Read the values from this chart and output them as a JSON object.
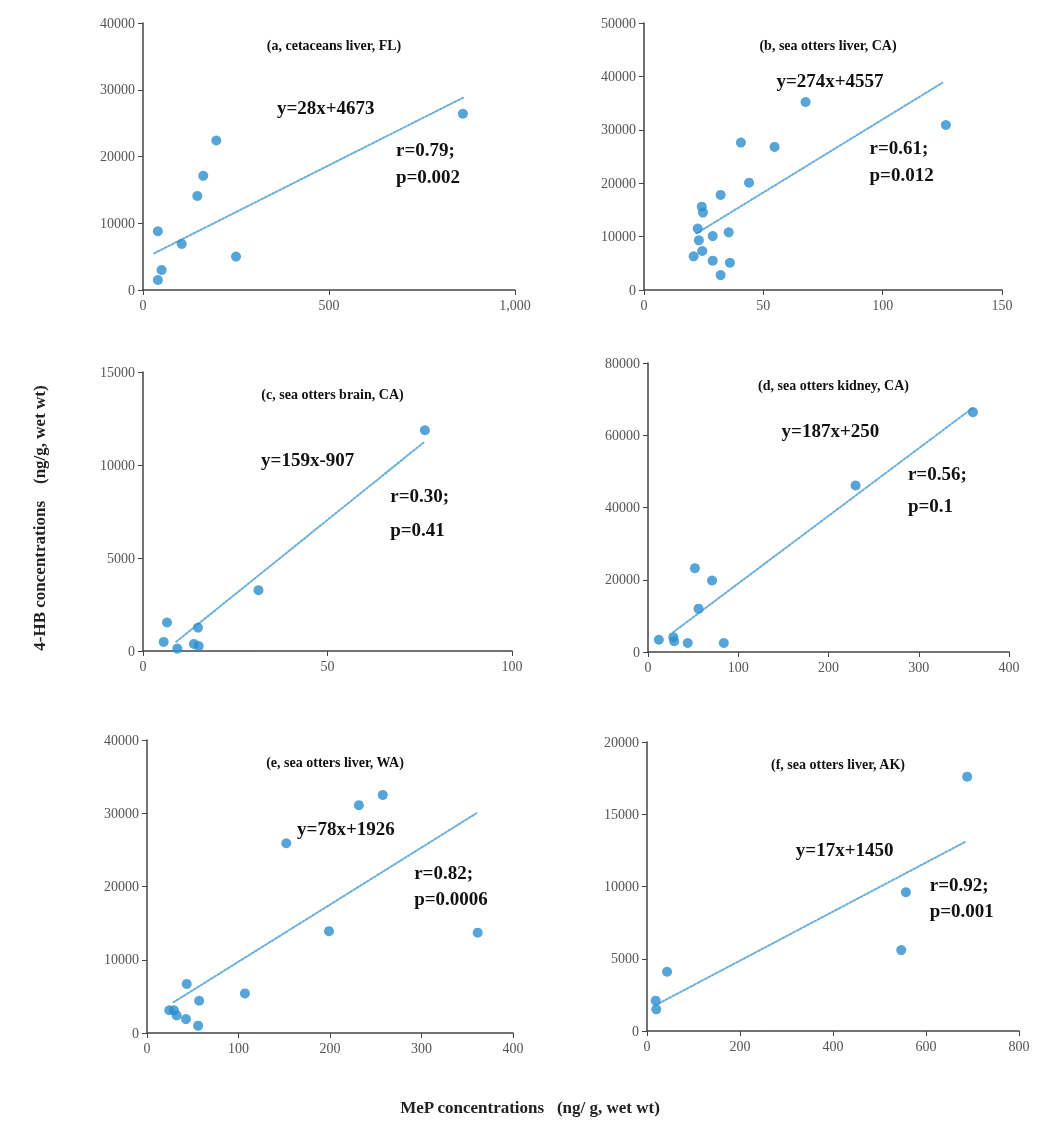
{
  "chart_data": [
    {
      "type": "scatter",
      "title": "(a, cetaceans liver, FL)",
      "annotations": [
        "y=28x+4673",
        "r=0.79;",
        "p=0.002"
      ],
      "xlim": [
        0,
        1000
      ],
      "xticks": [
        0,
        500,
        {
          "value": 1000,
          "label": "1,000"
        }
      ],
      "ylim": [
        0,
        40000
      ],
      "yticks": [
        0,
        10000,
        20000,
        30000,
        40000
      ],
      "marker": "circle",
      "series": [
        {
          "color": "#2a8fcf",
          "x": [
            40,
            104,
            146,
            162,
            197,
            250,
            860,
            40,
            50
          ],
          "values": [
            8800,
            6900,
            14100,
            17100,
            22400,
            5000,
            26400,
            1500,
            3000
          ]
        },
        {
          "type": "line",
          "color": "#6aaedc",
          "line_style": "dotted",
          "marker": "none",
          "x": [
            30,
            860
          ],
          "values": [
            5500,
            28800
          ]
        }
      ]
    },
    {
      "type": "scatter",
      "title": "(b, sea otters liver, CA)",
      "annotations": [
        "y=274x+4557",
        "r=0.61;",
        "p=0.012"
      ],
      "xlim": [
        0,
        150
      ],
      "xticks": [
        0,
        50,
        100,
        150
      ],
      "ylim": [
        0,
        50000
      ],
      "yticks": [
        0,
        10000,
        20000,
        30000,
        40000,
        50000
      ],
      "marker": "circle",
      "series": [
        {
          "color": "#2a8fcf",
          "x": [
            67.7,
            126.5,
            40.6,
            54.7,
            44,
            32.1,
            24.2,
            24.7,
            22.5,
            23,
            28.8,
            35.5,
            24.4,
            20.8,
            28.8,
            36,
            32.1
          ],
          "values": [
            35200,
            30900,
            27600,
            26800,
            20100,
            17800,
            15600,
            14500,
            11500,
            9300,
            10100,
            10800,
            7300,
            6300,
            5500,
            5100,
            2800
          ]
        },
        {
          "type": "line",
          "color": "#6aaedc",
          "line_style": "dotted",
          "marker": "none",
          "x": [
            22,
            125
          ],
          "values": [
            10600,
            38800
          ]
        }
      ]
    },
    {
      "type": "scatter",
      "title": "(c, sea otters brain, CA)",
      "ylabel": "4-HB concentrations    (ng/g, wet wt)",
      "annotations": [
        "y=159x-907",
        "r=0.30;",
        "p=0.41"
      ],
      "xlim": [
        0,
        100
      ],
      "xticks": [
        0,
        50,
        100
      ],
      "ylim": [
        0,
        15000
      ],
      "yticks": [
        0,
        5000,
        10000,
        15000
      ],
      "marker": "circle",
      "series": [
        {
          "color": "#2a8fcf",
          "x": [
            76.4,
            31.3,
            6.5,
            5.6,
            9.3,
            14.9,
            13.8,
            15.1
          ],
          "values": [
            11870,
            3270,
            1530,
            490,
            130,
            1260,
            380,
            270
          ]
        },
        {
          "type": "line",
          "color": "#6aaedc",
          "line_style": "dotted",
          "marker": "none",
          "x": [
            9,
            76
          ],
          "values": [
            500,
            11200
          ]
        }
      ]
    },
    {
      "type": "scatter",
      "title": "(d, sea otters kidney, CA)",
      "annotations": [
        "y=187x+250",
        "r=0.56;",
        "p=0.1"
      ],
      "xlim": [
        0,
        400
      ],
      "xticks": [
        0,
        100,
        200,
        300,
        400
      ],
      "ylim": [
        0,
        80000
      ],
      "yticks": [
        0,
        20000,
        40000,
        60000,
        80000
      ],
      "marker": "circle",
      "series": [
        {
          "color": "#2a8fcf",
          "x": [
            360,
            230,
            52,
            71,
            56,
            12,
            28,
            29,
            44,
            84
          ],
          "values": [
            66400,
            46100,
            23200,
            19800,
            12000,
            3400,
            4100,
            3000,
            2500,
            2500
          ]
        },
        {
          "type": "line",
          "color": "#6aaedc",
          "line_style": "dotted",
          "marker": "none",
          "x": [
            28,
            360
          ],
          "values": [
            5500,
            67600
          ]
        }
      ]
    },
    {
      "type": "scatter",
      "title": "(e, sea otters liver, WA)",
      "xlabel": "MeP concentrations   (ng/ g, wet wt)",
      "annotations": [
        "y=78x+1926",
        "r=0.82;",
        "p=0.0006"
      ],
      "xlim": [
        0,
        400
      ],
      "xticks": [
        0,
        100,
        200,
        300,
        400
      ],
      "ylim": [
        0,
        40000
      ],
      "yticks": [
        0,
        10000,
        20000,
        30000,
        40000
      ],
      "marker": "circle",
      "series": [
        {
          "color": "#2a8fcf",
          "x": [
            257.7,
            231.6,
            152.2,
            198.9,
            361.4,
            107,
            43.4,
            57,
            24.3,
            29.4,
            32.4,
            42.6,
            55.9
          ],
          "values": [
            32500,
            31100,
            25900,
            13900,
            13700,
            5400,
            6700,
            4400,
            3100,
            3100,
            2400,
            1900,
            1000
          ]
        },
        {
          "type": "line",
          "color": "#6aaedc",
          "line_style": "dotted",
          "marker": "none",
          "x": [
            29,
            360
          ],
          "values": [
            4200,
            30000
          ]
        }
      ]
    },
    {
      "type": "scatter",
      "title": "(f, sea otters liver, AK)",
      "annotations": [
        "y=17x+1450",
        "r=0.92;",
        "p=0.001"
      ],
      "xlim": [
        0,
        800
      ],
      "xticks": [
        0,
        200,
        400,
        600,
        800
      ],
      "ylim": [
        0,
        20000
      ],
      "yticks": [
        0,
        5000,
        10000,
        15000,
        20000
      ],
      "marker": "circle",
      "series": [
        {
          "color": "#2a8fcf",
          "x": [
            688.5,
            556.8,
            546.8,
            43.2,
            18.7,
            20
          ],
          "values": [
            17600,
            9600,
            5600,
            4100,
            2100,
            1500
          ]
        },
        {
          "type": "line",
          "color": "#6aaedc",
          "line_style": "dotted",
          "marker": "none",
          "x": [
            25,
            685
          ],
          "values": [
            1900,
            13100
          ]
        }
      ]
    }
  ]
}
